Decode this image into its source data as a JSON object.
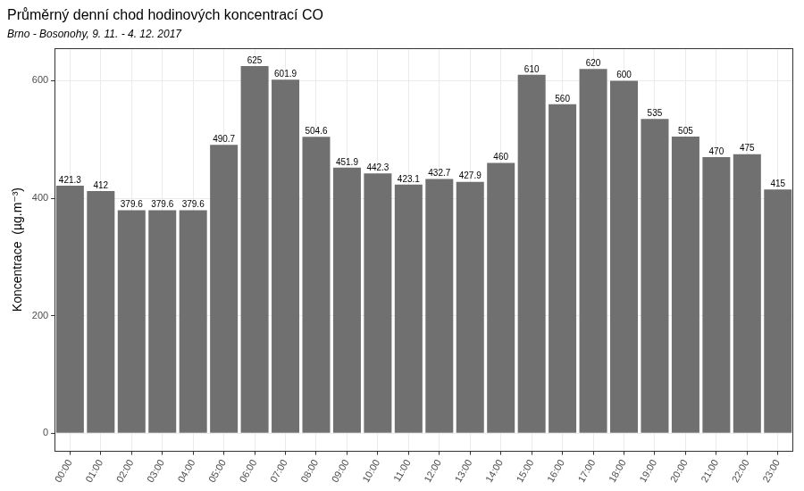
{
  "chart_data": {
    "type": "bar",
    "title": "Průměrný denní chod hodinových koncentrací CO",
    "subtitle": "Brno - Bosonohy, 9. 11. - 4. 12. 2017",
    "y_label": "Koncentrace  (µg.m⁻³)",
    "categories": [
      "00:00",
      "01:00",
      "02:00",
      "03:00",
      "04:00",
      "05:00",
      "06:00",
      "07:00",
      "08:00",
      "09:00",
      "10:00",
      "11:00",
      "12:00",
      "13:00",
      "14:00",
      "15:00",
      "16:00",
      "17:00",
      "18:00",
      "19:00",
      "20:00",
      "21:00",
      "22:00",
      "23:00"
    ],
    "values": [
      421.3,
      412,
      379.6,
      379.6,
      379.6,
      490.7,
      625,
      601.9,
      504.6,
      451.9,
      442.3,
      423.1,
      432.7,
      427.9,
      460,
      610,
      560,
      620,
      600,
      535,
      505,
      470,
      475,
      415
    ],
    "color": "#707070",
    "ylim": [
      -31,
      656
    ],
    "yticks": [
      0,
      200,
      400,
      600
    ],
    "grid": true,
    "data_labels": true
  }
}
